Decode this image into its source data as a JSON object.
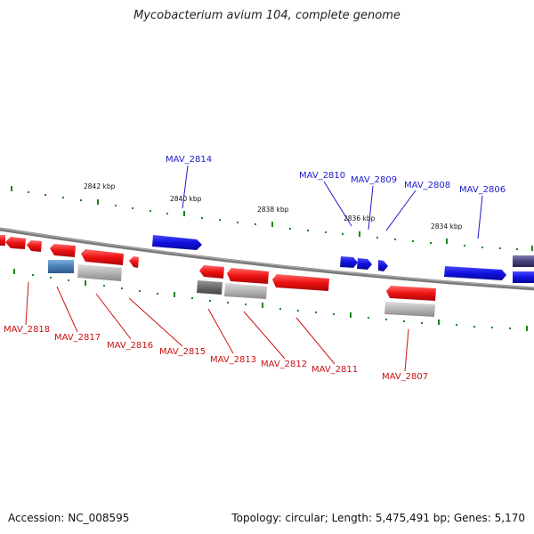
{
  "title": "Mycobacterium avium 104, complete genome",
  "footer": {
    "accession": "Accession: NC_008595",
    "summary": "Topology: circular; Length: 5,475,491 bp; Genes: 5,170"
  },
  "colors": {
    "forward_gene": "#1010e0",
    "reverse_gene": "#ee1111",
    "pseudo_gene": "#b4b4b4",
    "dark_gene": "#6a6a6a",
    "steel_gene": "#4a7fb5",
    "purple_gene": "#4a4080",
    "backbone": "#808080",
    "tick": "#118811",
    "label_forward": "#1a1acd",
    "label_reverse": "#cc1111"
  },
  "scale_labels": [
    "2842 kbp",
    "2840 kbp",
    "2838 kbp",
    "2836 kbp",
    "2834 kbp"
  ],
  "genes_top": [
    "MAV_2814",
    "MAV_2810",
    "MAV_2809",
    "MAV_2808",
    "MAV_2806"
  ],
  "genes_bottom": [
    "MAV_2818",
    "MAV_2817",
    "MAV_2816",
    "MAV_2815",
    "MAV_2813",
    "MAV_2812",
    "MAV_2811",
    "MAV_2807"
  ]
}
